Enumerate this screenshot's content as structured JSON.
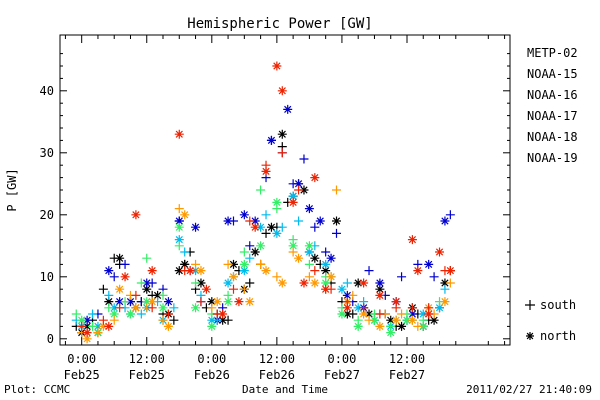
{
  "chart_data": {
    "type": "scatter",
    "title": "Hemispheric Power [GW]",
    "xlabel": "Date and Time",
    "ylabel": "P [GW]",
    "x_unit": "hours since 2011-02-25 00:00 UT",
    "xlim": [
      -4,
      79
    ],
    "ylim": [
      -1,
      49
    ],
    "y_ticks": [
      0,
      10,
      20,
      30,
      40
    ],
    "x_ticks": [
      {
        "x": 0,
        "time": "0:00",
        "date": "Feb25"
      },
      {
        "x": 12,
        "time": "12:00",
        "date": "Feb25"
      },
      {
        "x": 24,
        "time": "0:00",
        "date": "Feb26"
      },
      {
        "x": 36,
        "time": "12:00",
        "date": "Feb26"
      },
      {
        "x": 48,
        "time": "0:00",
        "date": "Feb27"
      },
      {
        "x": 60,
        "time": "12:00",
        "date": "Feb27"
      }
    ],
    "legend_position": "right",
    "grid": false,
    "marker_legend": [
      {
        "symbol": "+",
        "label": "south"
      },
      {
        "symbol": "*",
        "label": "north"
      }
    ],
    "series": [
      {
        "name": "METP-02",
        "color": "#000000",
        "south": [
          [
            -1,
            2
          ],
          [
            2,
            3
          ],
          [
            4,
            8
          ],
          [
            6,
            13
          ],
          [
            7,
            12
          ],
          [
            9,
            6
          ],
          [
            11,
            6
          ],
          [
            13,
            7
          ],
          [
            15,
            4
          ],
          [
            17,
            3
          ],
          [
            19,
            12
          ],
          [
            20,
            14
          ],
          [
            21,
            8
          ],
          [
            23,
            5
          ],
          [
            25,
            4
          ],
          [
            27,
            3
          ],
          [
            29,
            11
          ],
          [
            31,
            9
          ],
          [
            33,
            12
          ],
          [
            34,
            17
          ],
          [
            36,
            18
          ],
          [
            37,
            31
          ],
          [
            38,
            22
          ],
          [
            40,
            25
          ],
          [
            42,
            14
          ],
          [
            44,
            12
          ],
          [
            46,
            9
          ],
          [
            48,
            6
          ],
          [
            50,
            4
          ],
          [
            52,
            5
          ],
          [
            54,
            3
          ],
          [
            56,
            4
          ],
          [
            58,
            2
          ],
          [
            60,
            3
          ],
          [
            62,
            4
          ],
          [
            64,
            3
          ],
          [
            66,
            5
          ],
          [
            68,
            11
          ]
        ],
        "north": [
          [
            0,
            1
          ],
          [
            1,
            2
          ],
          [
            3,
            1
          ],
          [
            5,
            6
          ],
          [
            7,
            13
          ],
          [
            10,
            5
          ],
          [
            12,
            8
          ],
          [
            14,
            7
          ],
          [
            16,
            4
          ],
          [
            18,
            11
          ],
          [
            19,
            12
          ],
          [
            22,
            9
          ],
          [
            24,
            6
          ],
          [
            26,
            3
          ],
          [
            28,
            12
          ],
          [
            30,
            8
          ],
          [
            32,
            14
          ],
          [
            35,
            18
          ],
          [
            37,
            33
          ],
          [
            39,
            23
          ],
          [
            41,
            24
          ],
          [
            43,
            13
          ],
          [
            45,
            11
          ],
          [
            47,
            19
          ],
          [
            49,
            4
          ],
          [
            51,
            9
          ],
          [
            53,
            4
          ],
          [
            55,
            8
          ],
          [
            57,
            3
          ],
          [
            59,
            2
          ],
          [
            61,
            5
          ],
          [
            63,
            2
          ],
          [
            65,
            3
          ],
          [
            67,
            9
          ]
        ]
      },
      {
        "name": "NOAA-15",
        "color": "#0000cc",
        "south": [
          [
            0,
            2
          ],
          [
            3,
            4
          ],
          [
            6,
            10
          ],
          [
            8,
            12
          ],
          [
            11,
            6
          ],
          [
            13,
            9
          ],
          [
            15,
            8
          ],
          [
            18,
            19
          ],
          [
            20,
            11
          ],
          [
            22,
            6
          ],
          [
            26,
            5
          ],
          [
            28,
            19
          ],
          [
            31,
            15
          ],
          [
            34,
            26
          ],
          [
            35,
            32
          ],
          [
            37,
            30
          ],
          [
            39,
            25
          ],
          [
            41,
            29
          ],
          [
            43,
            18
          ],
          [
            45,
            14
          ],
          [
            47,
            17
          ],
          [
            50,
            6
          ],
          [
            53,
            11
          ],
          [
            56,
            7
          ],
          [
            59,
            10
          ],
          [
            62,
            12
          ],
          [
            65,
            10
          ],
          [
            68,
            20
          ]
        ],
        "north": [
          [
            1,
            3
          ],
          [
            5,
            11
          ],
          [
            7,
            6
          ],
          [
            9,
            6
          ],
          [
            12,
            9
          ],
          [
            16,
            6
          ],
          [
            18,
            19
          ],
          [
            21,
            18
          ],
          [
            25,
            3
          ],
          [
            27,
            19
          ],
          [
            30,
            20
          ],
          [
            32,
            19
          ],
          [
            35,
            32
          ],
          [
            38,
            37
          ],
          [
            40,
            25
          ],
          [
            42,
            21
          ],
          [
            44,
            19
          ],
          [
            46,
            13
          ],
          [
            49,
            7
          ],
          [
            52,
            5
          ],
          [
            55,
            9
          ],
          [
            58,
            6
          ],
          [
            61,
            4
          ],
          [
            64,
            12
          ],
          [
            67,
            19
          ]
        ]
      },
      {
        "name": "NOAA-16",
        "color": "#00bbee",
        "south": [
          [
            -1,
            3
          ],
          [
            2,
            4
          ],
          [
            5,
            7
          ],
          [
            8,
            5
          ],
          [
            11,
            4
          ],
          [
            14,
            6
          ],
          [
            17,
            5
          ],
          [
            19,
            14
          ],
          [
            22,
            7
          ],
          [
            25,
            3
          ],
          [
            28,
            10
          ],
          [
            31,
            13
          ],
          [
            34,
            20
          ],
          [
            37,
            18
          ],
          [
            40,
            19
          ],
          [
            43,
            15
          ],
          [
            46,
            10
          ],
          [
            49,
            9
          ],
          [
            52,
            6
          ],
          [
            55,
            4
          ],
          [
            58,
            3
          ],
          [
            61,
            3
          ],
          [
            64,
            4
          ],
          [
            67,
            8
          ]
        ],
        "north": [
          [
            0,
            2
          ],
          [
            3,
            2
          ],
          [
            6,
            5
          ],
          [
            9,
            4
          ],
          [
            12,
            5
          ],
          [
            15,
            3
          ],
          [
            18,
            16
          ],
          [
            21,
            11
          ],
          [
            24,
            3
          ],
          [
            27,
            9
          ],
          [
            30,
            11
          ],
          [
            33,
            18
          ],
          [
            36,
            17
          ],
          [
            39,
            23
          ],
          [
            42,
            14
          ],
          [
            45,
            12
          ],
          [
            48,
            8
          ],
          [
            51,
            5
          ],
          [
            54,
            3
          ],
          [
            57,
            2
          ],
          [
            60,
            3
          ],
          [
            63,
            4
          ],
          [
            66,
            5
          ]
        ]
      },
      {
        "name": "NOAA-17",
        "color": "#33ee66",
        "south": [
          [
            -1,
            4
          ],
          [
            2,
            2
          ],
          [
            5,
            5
          ],
          [
            8,
            6
          ],
          [
            11,
            9
          ],
          [
            12,
            13
          ],
          [
            15,
            7
          ],
          [
            18,
            15
          ],
          [
            21,
            9
          ],
          [
            24,
            4
          ],
          [
            27,
            7
          ],
          [
            30,
            14
          ],
          [
            33,
            24
          ],
          [
            36,
            21
          ],
          [
            39,
            16
          ],
          [
            42,
            12
          ],
          [
            45,
            10
          ],
          [
            48,
            5
          ],
          [
            51,
            3
          ],
          [
            54,
            4
          ],
          [
            57,
            2
          ],
          [
            60,
            4
          ],
          [
            63,
            3
          ],
          [
            66,
            6
          ]
        ],
        "north": [
          [
            0,
            3
          ],
          [
            3,
            1
          ],
          [
            6,
            4
          ],
          [
            9,
            4
          ],
          [
            12,
            6
          ],
          [
            15,
            5
          ],
          [
            18,
            18
          ],
          [
            21,
            5
          ],
          [
            24,
            2
          ],
          [
            27,
            6
          ],
          [
            30,
            12
          ],
          [
            33,
            15
          ],
          [
            36,
            22
          ],
          [
            39,
            15
          ],
          [
            42,
            15
          ],
          [
            45,
            9
          ],
          [
            48,
            4
          ],
          [
            51,
            2
          ],
          [
            54,
            3
          ],
          [
            57,
            1
          ],
          [
            60,
            3
          ],
          [
            63,
            2
          ]
        ]
      },
      {
        "name": "NOAA-18",
        "color": "#ff9900",
        "south": [
          [
            0,
            1
          ],
          [
            3,
            1
          ],
          [
            6,
            3
          ],
          [
            9,
            7
          ],
          [
            12,
            5
          ],
          [
            15,
            3
          ],
          [
            18,
            21
          ],
          [
            21,
            12
          ],
          [
            24,
            5
          ],
          [
            27,
            12
          ],
          [
            30,
            8
          ],
          [
            33,
            12
          ],
          [
            36,
            10
          ],
          [
            39,
            14
          ],
          [
            42,
            10
          ],
          [
            45,
            8
          ],
          [
            47,
            24
          ],
          [
            50,
            7
          ],
          [
            53,
            3
          ],
          [
            56,
            4
          ],
          [
            59,
            4
          ],
          [
            62,
            2
          ],
          [
            65,
            4
          ],
          [
            68,
            9
          ]
        ],
        "north": [
          [
            1,
            0
          ],
          [
            4,
            2
          ],
          [
            7,
            8
          ],
          [
            10,
            5
          ],
          [
            13,
            6
          ],
          [
            16,
            2
          ],
          [
            19,
            20
          ],
          [
            22,
            11
          ],
          [
            25,
            6
          ],
          [
            28,
            10
          ],
          [
            31,
            6
          ],
          [
            34,
            11
          ],
          [
            37,
            9
          ],
          [
            40,
            13
          ],
          [
            43,
            9
          ],
          [
            46,
            10
          ],
          [
            49,
            6
          ],
          [
            52,
            4
          ],
          [
            55,
            2
          ],
          [
            58,
            3
          ],
          [
            61,
            3
          ],
          [
            64,
            5
          ],
          [
            67,
            6
          ]
        ]
      },
      {
        "name": "NOAA-19",
        "color": "#ee2200",
        "south": [
          [
            0,
            2
          ],
          [
            4,
            3
          ],
          [
            7,
            5
          ],
          [
            10,
            7
          ],
          [
            13,
            5
          ],
          [
            16,
            4
          ],
          [
            19,
            11
          ],
          [
            22,
            6
          ],
          [
            25,
            4
          ],
          [
            28,
            8
          ],
          [
            31,
            19
          ],
          [
            34,
            28
          ],
          [
            37,
            30
          ],
          [
            40,
            24
          ],
          [
            43,
            11
          ],
          [
            46,
            8
          ],
          [
            49,
            6
          ],
          [
            52,
            5
          ],
          [
            55,
            4
          ],
          [
            58,
            5
          ],
          [
            61,
            5
          ],
          [
            64,
            5
          ],
          [
            67,
            11
          ]
        ],
        "north": [
          [
            1,
            1
          ],
          [
            5,
            2
          ],
          [
            8,
            10
          ],
          [
            10,
            20
          ],
          [
            13,
            11
          ],
          [
            18,
            33
          ],
          [
            20,
            11
          ],
          [
            23,
            8
          ],
          [
            26,
            4
          ],
          [
            29,
            6
          ],
          [
            32,
            18
          ],
          [
            34,
            27
          ],
          [
            36,
            44
          ],
          [
            37,
            40
          ],
          [
            39,
            22
          ],
          [
            41,
            9
          ],
          [
            43,
            26
          ],
          [
            45,
            8
          ],
          [
            49,
            5
          ],
          [
            52,
            9
          ],
          [
            55,
            7
          ],
          [
            58,
            6
          ],
          [
            61,
            16
          ],
          [
            62,
            11
          ],
          [
            64,
            4
          ],
          [
            66,
            14
          ],
          [
            68,
            11
          ]
        ]
      }
    ]
  },
  "footer": {
    "plot_label": "Plot: CCMC",
    "timestamp": "2011/02/27 21:40:09"
  }
}
